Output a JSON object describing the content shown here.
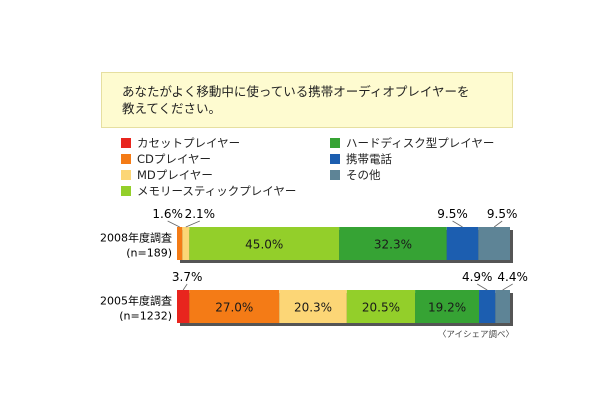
{
  "question": {
    "line1": "あなたがよく移動中に使っている携帯オーディオプレイヤーを",
    "line2": "教えてください。"
  },
  "source_note": "〈アイシェア調べ〉",
  "chart_data": {
    "type": "bar",
    "orientation": "horizontal",
    "stacked": true,
    "unit": "%",
    "categories": [
      {
        "label1": "2008年度調査",
        "label2": "(n=189)"
      },
      {
        "label1": "2005年度調査",
        "label2": "(n=1232)"
      }
    ],
    "series": [
      {
        "name": "カセットプレイヤー",
        "color": "#e8251e",
        "values": [
          0.0,
          3.7
        ]
      },
      {
        "name": "CDプレイヤー",
        "color": "#f47b16",
        "values": [
          1.6,
          27.0
        ]
      },
      {
        "name": "MDプレイヤー",
        "color": "#fcd676",
        "values": [
          2.1,
          20.3
        ]
      },
      {
        "name": "メモリースティックプレイヤー",
        "color": "#93cf2a",
        "values": [
          45.0,
          20.5
        ]
      },
      {
        "name": "ハードディスク型プレイヤー",
        "color": "#36a334",
        "values": [
          32.3,
          19.2
        ]
      },
      {
        "name": "携帯電話",
        "color": "#1c5eb0",
        "values": [
          9.5,
          4.9
        ]
      },
      {
        "name": "その他",
        "color": "#5e8496",
        "values": [
          9.5,
          4.4
        ]
      }
    ],
    "data_labels": [
      [
        null,
        "1.6%",
        "2.1%",
        "45.0%",
        "32.3%",
        "9.5%",
        "9.5%"
      ],
      [
        "3.7%",
        "27.0%",
        "20.3%",
        "20.5%",
        "19.2%",
        "4.9%",
        "4.4%"
      ]
    ],
    "xlim": [
      0,
      100
    ]
  }
}
